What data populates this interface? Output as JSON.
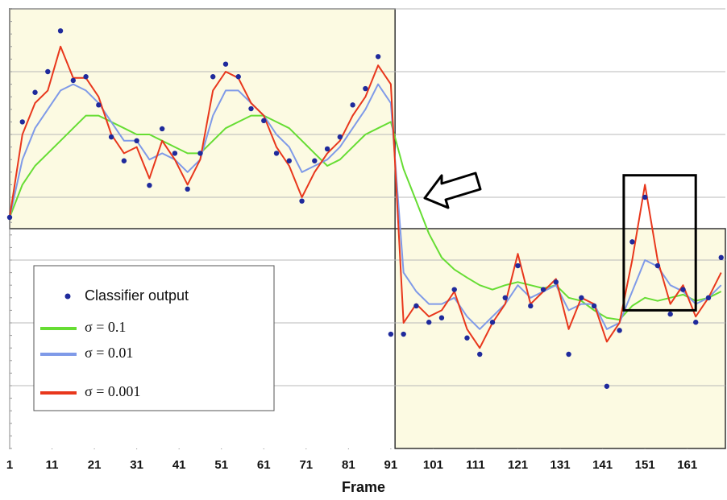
{
  "chart_data": {
    "type": "line",
    "x_label": "Frame",
    "x": [
      1,
      4,
      7,
      10,
      13,
      16,
      19,
      22,
      25,
      28,
      31,
      34,
      37,
      40,
      43,
      46,
      49,
      52,
      55,
      58,
      61,
      64,
      67,
      70,
      73,
      76,
      79,
      82,
      85,
      88,
      91,
      94,
      97,
      100,
      103,
      106,
      109,
      112,
      115,
      118,
      121,
      124,
      127,
      130,
      133,
      136,
      139,
      142,
      145,
      148,
      151,
      154,
      157,
      160,
      163,
      166,
      169
    ],
    "xlim": [
      1,
      170
    ],
    "xticks": [
      1,
      11,
      21,
      31,
      41,
      51,
      61,
      71,
      81,
      91,
      101,
      111,
      121,
      131,
      141,
      151,
      161
    ],
    "ylim": [
      0,
      7
    ],
    "ygrid": [
      1,
      2,
      3,
      4,
      5,
      6,
      7
    ],
    "shaded_regions": [
      {
        "x": [
          1,
          92
        ],
        "y": [
          3.5,
          7
        ],
        "color": "#fcfae2"
      },
      {
        "x": [
          92,
          170
        ],
        "y": [
          0,
          3.5
        ],
        "color": "#fcfae2"
      }
    ],
    "highlight_box": {
      "x": [
        146,
        163
      ],
      "y": [
        2.2,
        4.35
      ]
    },
    "series": [
      {
        "name": "Classifier output",
        "style": "markers",
        "color": "#1f2a9c",
        "values": [
          3.68,
          5.2,
          5.67,
          6.0,
          6.65,
          5.86,
          5.92,
          5.47,
          4.96,
          4.58,
          4.9,
          4.19,
          5.09,
          4.7,
          4.13,
          4.7,
          5.92,
          6.12,
          5.92,
          5.41,
          5.22,
          4.7,
          4.58,
          3.94,
          4.58,
          4.77,
          4.96,
          5.47,
          5.73,
          6.24,
          1.82,
          1.82,
          2.27,
          2.01,
          2.08,
          2.53,
          1.76,
          1.5,
          2.01,
          2.4,
          2.91,
          2.27,
          2.53,
          2.65,
          1.5,
          2.4,
          2.27,
          0.99,
          1.88,
          3.29,
          4.0,
          2.91,
          2.14,
          2.53,
          2.01,
          2.4,
          3.04
        ]
      },
      {
        "name": "σ = 0.1",
        "style": "line",
        "color": "#66dd33",
        "values": [
          3.68,
          4.2,
          4.5,
          4.7,
          4.9,
          5.1,
          5.3,
          5.3,
          5.2,
          5.1,
          5.0,
          5.0,
          4.9,
          4.8,
          4.7,
          4.7,
          4.9,
          5.1,
          5.2,
          5.3,
          5.3,
          5.2,
          5.1,
          4.9,
          4.7,
          4.5,
          4.6,
          4.8,
          5.0,
          5.1,
          5.2,
          4.45,
          3.94,
          3.42,
          3.04,
          2.85,
          2.72,
          2.6,
          2.53,
          2.6,
          2.65,
          2.6,
          2.55,
          2.6,
          2.4,
          2.35,
          2.2,
          2.08,
          2.05,
          2.27,
          2.4,
          2.35,
          2.4,
          2.45,
          2.35,
          2.4,
          2.5
        ]
      },
      {
        "name": "σ = 0.01",
        "style": "line",
        "color": "#7f9ae8",
        "values": [
          3.68,
          4.6,
          5.1,
          5.4,
          5.7,
          5.8,
          5.7,
          5.5,
          5.2,
          4.9,
          4.9,
          4.6,
          4.7,
          4.6,
          4.4,
          4.6,
          5.3,
          5.7,
          5.7,
          5.5,
          5.3,
          5.0,
          4.8,
          4.4,
          4.5,
          4.6,
          4.8,
          5.1,
          5.4,
          5.8,
          5.5,
          2.8,
          2.5,
          2.3,
          2.3,
          2.4,
          2.1,
          1.9,
          2.1,
          2.3,
          2.6,
          2.4,
          2.5,
          2.6,
          2.2,
          2.3,
          2.3,
          1.9,
          2.0,
          2.5,
          3.0,
          2.9,
          2.6,
          2.5,
          2.3,
          2.4,
          2.6
        ]
      },
      {
        "name": "σ = 0.001",
        "style": "line",
        "color": "#e8371c",
        "values": [
          3.68,
          5.0,
          5.5,
          5.7,
          6.4,
          5.9,
          5.9,
          5.6,
          5.0,
          4.7,
          4.8,
          4.3,
          4.9,
          4.6,
          4.2,
          4.6,
          5.7,
          6.0,
          5.9,
          5.5,
          5.3,
          4.8,
          4.5,
          4.0,
          4.4,
          4.7,
          4.9,
          5.3,
          5.6,
          6.1,
          5.8,
          2.0,
          2.3,
          2.1,
          2.2,
          2.5,
          1.9,
          1.6,
          2.0,
          2.3,
          3.1,
          2.3,
          2.5,
          2.7,
          1.9,
          2.4,
          2.3,
          1.7,
          2.0,
          3.0,
          4.2,
          3.0,
          2.3,
          2.6,
          2.1,
          2.4,
          2.8
        ]
      }
    ]
  }
}
